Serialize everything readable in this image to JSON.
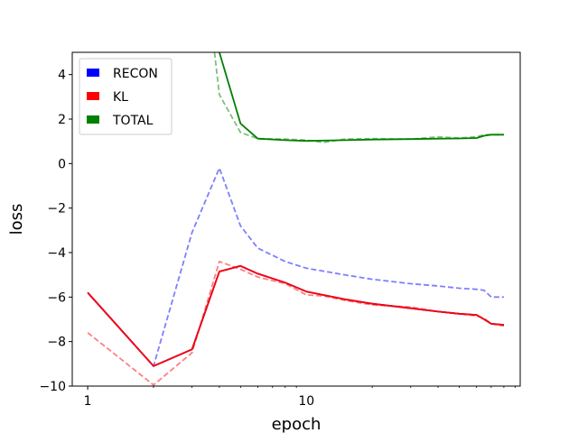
{
  "chart_data": {
    "type": "line",
    "title": "",
    "xlabel": "epoch",
    "ylabel": "loss",
    "xscale": "log",
    "xlim": [
      0.85,
      95
    ],
    "ylim": [
      -10,
      5
    ],
    "x_ticks": [
      {
        "value": 1,
        "label": "1"
      },
      {
        "value": 10,
        "label": "10"
      }
    ],
    "y_ticks": [
      {
        "value": 4,
        "label": "4"
      },
      {
        "value": 2,
        "label": "2"
      },
      {
        "value": 0,
        "label": "0"
      },
      {
        "value": -2,
        "label": "−2"
      },
      {
        "value": -4,
        "label": "−4"
      },
      {
        "value": -6,
        "label": "−6"
      },
      {
        "value": -8,
        "label": "−8"
      },
      {
        "value": -10,
        "label": "−10"
      }
    ],
    "grid": false,
    "legend": {
      "placement": "top-left",
      "entries": [
        {
          "label": "RECON",
          "color": "#0000ff"
        },
        {
          "label": "KL",
          "color": "#ff0000"
        },
        {
          "label": "TOTAL",
          "color": "#008000"
        }
      ]
    },
    "series": [
      {
        "name": "RECON",
        "color": "#0000ff",
        "style": "solid",
        "x": [
          1,
          2,
          3,
          4,
          5,
          6,
          8,
          10,
          15,
          20,
          30,
          40,
          50,
          60,
          65,
          70,
          80
        ],
        "y": [
          -5.8,
          -9.1,
          -8.35,
          -4.85,
          -4.6,
          -4.95,
          -5.35,
          -5.75,
          -6.1,
          -6.3,
          -6.5,
          -6.65,
          -6.75,
          -6.8,
          -7.0,
          -7.2,
          -7.25
        ]
      },
      {
        "name": "",
        "color": "#0000ff",
        "style": "dashed",
        "x": [
          1,
          2,
          3,
          4,
          5,
          6,
          8,
          10,
          15,
          20,
          30,
          40,
          50,
          60,
          65,
          70,
          80
        ],
        "y": [
          -5.8,
          -9.1,
          -3.1,
          -0.2,
          -2.8,
          -3.8,
          -4.4,
          -4.7,
          -5.0,
          -5.2,
          -5.4,
          -5.5,
          -5.6,
          -5.65,
          -5.7,
          -6.0,
          -6.0
        ]
      },
      {
        "name": "KL",
        "color": "#ff0000",
        "style": "solid",
        "x": [
          1,
          2,
          3,
          4,
          5,
          6,
          8,
          10,
          15,
          20,
          30,
          40,
          50,
          60,
          65,
          70,
          80
        ],
        "y": [
          -5.8,
          -9.1,
          -8.35,
          -4.85,
          -4.6,
          -4.95,
          -5.35,
          -5.75,
          -6.1,
          -6.3,
          -6.5,
          -6.65,
          -6.75,
          -6.8,
          -7.0,
          -7.2,
          -7.25
        ]
      },
      {
        "name": "",
        "color": "#ff0000",
        "style": "dashed",
        "x": [
          1,
          2,
          3,
          4,
          5,
          6,
          8,
          10,
          12,
          15,
          20,
          30,
          40,
          50,
          60,
          65,
          70,
          80
        ],
        "y": [
          -7.6,
          -9.95,
          -8.5,
          -4.4,
          -4.75,
          -5.1,
          -5.4,
          -5.9,
          -5.95,
          -6.15,
          -6.35,
          -6.45,
          -6.65,
          -6.75,
          -6.85,
          -6.95,
          -7.2,
          -7.3
        ]
      },
      {
        "name": "TOTAL",
        "color": "#008000",
        "style": "solid",
        "x": [
          4,
          5,
          6,
          8,
          10,
          15,
          20,
          30,
          40,
          50,
          60,
          65,
          70,
          80
        ],
        "y": [
          5.0,
          1.8,
          1.12,
          1.05,
          1.02,
          1.05,
          1.08,
          1.1,
          1.12,
          1.13,
          1.15,
          1.25,
          1.3,
          1.3
        ]
      },
      {
        "name": "",
        "color": "#008000",
        "style": "dashed",
        "x": [
          3.8,
          4,
          5,
          6,
          8,
          10,
          12,
          15,
          20,
          30,
          40,
          50,
          60,
          65,
          70,
          80
        ],
        "y": [
          5.0,
          3.1,
          1.4,
          1.12,
          1.1,
          1.05,
          0.95,
          1.1,
          1.12,
          1.1,
          1.2,
          1.15,
          1.2,
          1.3,
          1.3,
          1.3
        ]
      }
    ]
  }
}
